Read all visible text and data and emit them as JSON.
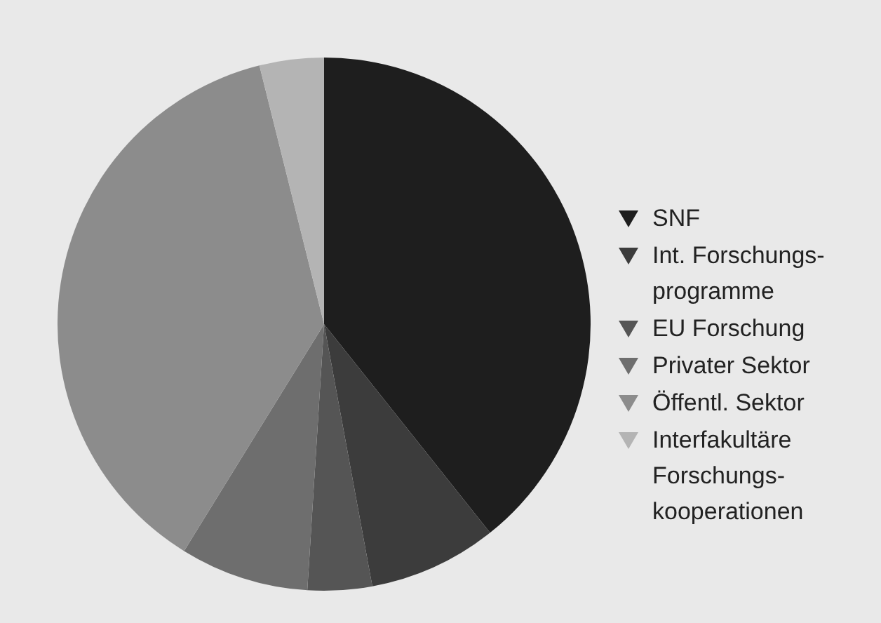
{
  "chart_data": {
    "type": "pie",
    "categories": [
      "SNF",
      "Int. Forschungs-\nprogramme",
      "EU Forschung",
      "Privater Sektor",
      "Öffentl. Sektor",
      "Interfakultäre\nForschungs-\nkooperationen"
    ],
    "values": [
      39.3,
      7.8,
      3.9,
      7.8,
      37.3,
      3.9
    ],
    "colors": [
      "#1e1e1e",
      "#3c3c3c",
      "#555555",
      "#6e6e6e",
      "#8c8c8c",
      "#b4b4b4"
    ],
    "legend": "right"
  }
}
